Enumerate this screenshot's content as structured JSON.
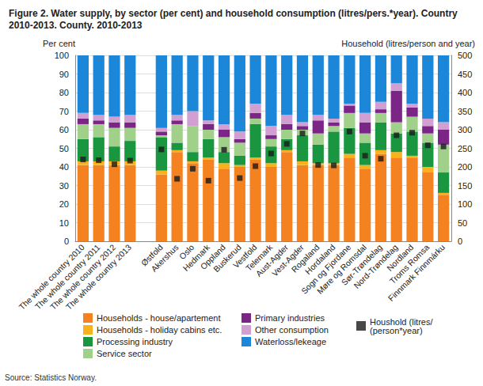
{
  "chart_data": {
    "type": "bar",
    "title": "Figure 2. Water supply, by sector (per cent) and household consumption (litres/pers.*year). Country 2010-2013. County. 2010-2013",
    "source": "Source: Statistics Norway.",
    "y_label": "Per cent",
    "y2_label": "Household (litres/person and year)",
    "stacked": true,
    "grid": true,
    "legend": "bottom",
    "categories": [
      "The whole country 2010",
      "The whole country 2011",
      "The whole country 2012",
      "The whole country 2013",
      null,
      "Østfold",
      "Akershus",
      "Oslo",
      "Hedmark",
      "Oppland",
      "Buskerud",
      "Vestfold",
      "Telemark",
      "Aust-Agder",
      "Vest-Agder",
      "Rogaland",
      "Hordaland",
      "Sogn og Fjordane",
      "Møre og Romsdal",
      "Sør-Trøndelag",
      "Nord-Trøndelag",
      "Nordland",
      "Troms Romsa",
      "Finnmark Finnmárku"
    ],
    "ylim": [
      0,
      100
    ],
    "yticks": [
      0,
      10,
      20,
      30,
      40,
      50,
      60,
      70,
      80,
      90,
      100
    ],
    "y2lim": [
      0,
      500
    ],
    "y2ticks": [
      0,
      50,
      100,
      150,
      200,
      250,
      300,
      350,
      400,
      450,
      500
    ],
    "series": [
      {
        "name": "Households - house/apartement",
        "color": "#f58220",
        "values": [
          41,
          41,
          41,
          41,
          null,
          36,
          48,
          42,
          44,
          39,
          40,
          44,
          40,
          48,
          41,
          41,
          41,
          45,
          39,
          47,
          45,
          45,
          37,
          25
        ]
      },
      {
        "name": "Households - holiday cabins etc.",
        "color": "#f9b21b",
        "values": [
          2,
          2,
          2,
          2,
          null,
          2,
          1,
          1,
          1,
          3,
          1,
          1,
          2,
          1,
          2,
          1,
          1,
          2,
          2,
          2,
          3,
          1,
          3,
          1
        ]
      },
      {
        "name": "Processing industry",
        "color": "#1a9641",
        "values": [
          12,
          13,
          8,
          11,
          null,
          18,
          4,
          5,
          10,
          6,
          5,
          18,
          9,
          6,
          14,
          10,
          17,
          14,
          12,
          15,
          10,
          13,
          13,
          11
        ]
      },
      {
        "name": "Service sector",
        "color": "#a1d08b",
        "values": [
          8,
          7,
          10,
          7,
          null,
          1,
          10,
          14,
          5,
          8,
          7,
          3,
          4,
          5,
          3,
          6,
          3,
          8,
          5,
          5,
          6,
          8,
          5,
          15
        ]
      },
      {
        "name": "Primary industries",
        "color": "#7b2586",
        "values": [
          3,
          2,
          3,
          3,
          null,
          2,
          2,
          0,
          3,
          4,
          2,
          3,
          2,
          3,
          2,
          7,
          2,
          4,
          6,
          2,
          17,
          5,
          4,
          8
        ]
      },
      {
        "name": "Other consumption",
        "color": "#d19fd1",
        "values": [
          3,
          3,
          3,
          4,
          null,
          2,
          3,
          8,
          2,
          3,
          4,
          5,
          5,
          5,
          2,
          3,
          2,
          1,
          5,
          4,
          4,
          2,
          4,
          4
        ]
      },
      {
        "name": "Waterloss/lekeage",
        "color": "#1c86d9",
        "values": [
          31,
          32,
          33,
          32,
          null,
          39,
          32,
          30,
          35,
          37,
          41,
          26,
          38,
          32,
          36,
          32,
          34,
          26,
          31,
          25,
          15,
          26,
          34,
          36
        ]
      },
      {
        "name": "Houshold (litres/(person*year)",
        "color": "#1a1a1a",
        "type": "scatter",
        "marker": "square",
        "axis": "y2",
        "values": [
          220,
          218,
          207,
          217,
          null,
          247,
          168,
          195,
          163,
          246,
          170,
          202,
          236,
          262,
          290,
          205,
          204,
          295,
          230,
          222,
          285,
          292,
          258,
          255
        ]
      }
    ]
  }
}
